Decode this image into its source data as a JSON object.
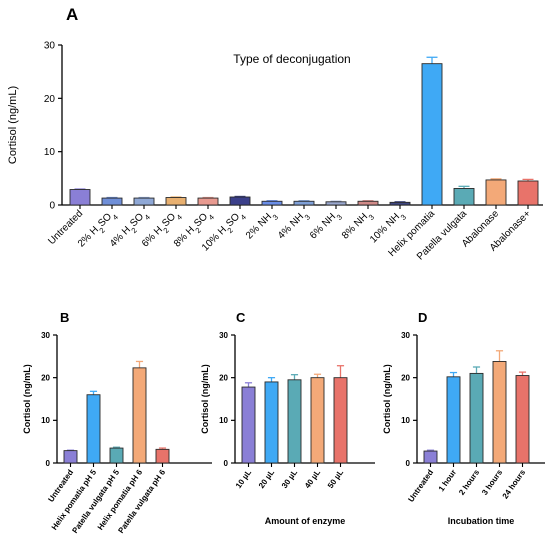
{
  "chart_data": [
    {
      "panel": "A",
      "type": "bar",
      "title": "Type of deconjugation",
      "xlabel": "",
      "ylabel": "Cortisol (ng/mL)",
      "ylim": [
        0,
        30
      ],
      "yticks": [
        0,
        10,
        20,
        30
      ],
      "grid": false,
      "categories": [
        "Untreated",
        "2% H₂SO₄",
        "4% H₂SO₄",
        "6% H₂SO₄",
        "8% H₂SO₄",
        "10% H₂SO₄",
        "2% NH₃",
        "4% NH₃",
        "6% NH₃",
        "8% NH₃",
        "10% NH₃",
        "Helix pomatia",
        "Patella vulgata",
        "Abalonase",
        "Abalonase+"
      ],
      "values": [
        2.9,
        1.3,
        1.3,
        1.4,
        1.3,
        1.5,
        0.7,
        0.7,
        0.6,
        0.7,
        0.5,
        26.5,
        3.1,
        4.7,
        4.5
      ],
      "errors": [
        0.1,
        0.1,
        0.1,
        0.1,
        0.1,
        0.1,
        0.1,
        0.1,
        0.1,
        0.1,
        0.1,
        1.2,
        0.4,
        0.2,
        0.3
      ],
      "colors": [
        "#8a7fd6",
        "#6f8fd8",
        "#8fa8d6",
        "#e8b070",
        "#e89a90",
        "#3b3f8a",
        "#6a8ee8",
        "#7fa0d8",
        "#9aa8d0",
        "#d08a88",
        "#3e4680",
        "#3fa9f5",
        "#5aaab5",
        "#f3a978",
        "#e8736a"
      ]
    },
    {
      "panel": "B",
      "type": "bar",
      "xlabel": "",
      "ylabel": "Cortisol (ng/mL)",
      "ylim": [
        0,
        30
      ],
      "yticks": [
        0,
        10,
        20,
        30
      ],
      "grid": false,
      "categories": [
        "Untreated",
        "Helix pomatia pH 5",
        "Patella vulgata pH 5",
        "Helix pomatia pH 6",
        "Patella vulgata pH 6"
      ],
      "values": [
        2.9,
        16.0,
        3.5,
        22.3,
        3.2
      ],
      "errors": [
        0.1,
        0.8,
        0.2,
        1.5,
        0.3
      ],
      "colors": [
        "#8a7fd6",
        "#3fa9f5",
        "#5aaab5",
        "#f3a978",
        "#e8736a"
      ]
    },
    {
      "panel": "C",
      "type": "bar",
      "xlabel": "Amount of enzyme",
      "ylabel": "Cortisol (ng/mL)",
      "ylim": [
        0,
        30
      ],
      "yticks": [
        0,
        10,
        20,
        30
      ],
      "grid": false,
      "categories": [
        "10 µL",
        "20 µL",
        "30 µL",
        "40 µL",
        "50 µL"
      ],
      "values": [
        17.8,
        19.0,
        19.5,
        20.0,
        20.0
      ],
      "errors": [
        1.0,
        1.0,
        1.2,
        0.8,
        2.8
      ],
      "colors": [
        "#8a7fd6",
        "#3fa9f5",
        "#5aaab5",
        "#f3a978",
        "#e8736a"
      ]
    },
    {
      "panel": "D",
      "type": "bar",
      "xlabel": "Incubation time",
      "ylabel": "Cortisol (ng/mL)",
      "ylim": [
        0,
        30
      ],
      "yticks": [
        0,
        10,
        20,
        30
      ],
      "grid": false,
      "categories": [
        "Untreated",
        "1 hour",
        "2 hours",
        "3 hours",
        "24 hours"
      ],
      "values": [
        2.8,
        20.2,
        21.0,
        23.8,
        20.5
      ],
      "errors": [
        0.2,
        1.0,
        1.5,
        2.5,
        0.8
      ],
      "colors": [
        "#8a7fd6",
        "#3fa9f5",
        "#5aaab5",
        "#f3a978",
        "#e8736a"
      ]
    }
  ]
}
